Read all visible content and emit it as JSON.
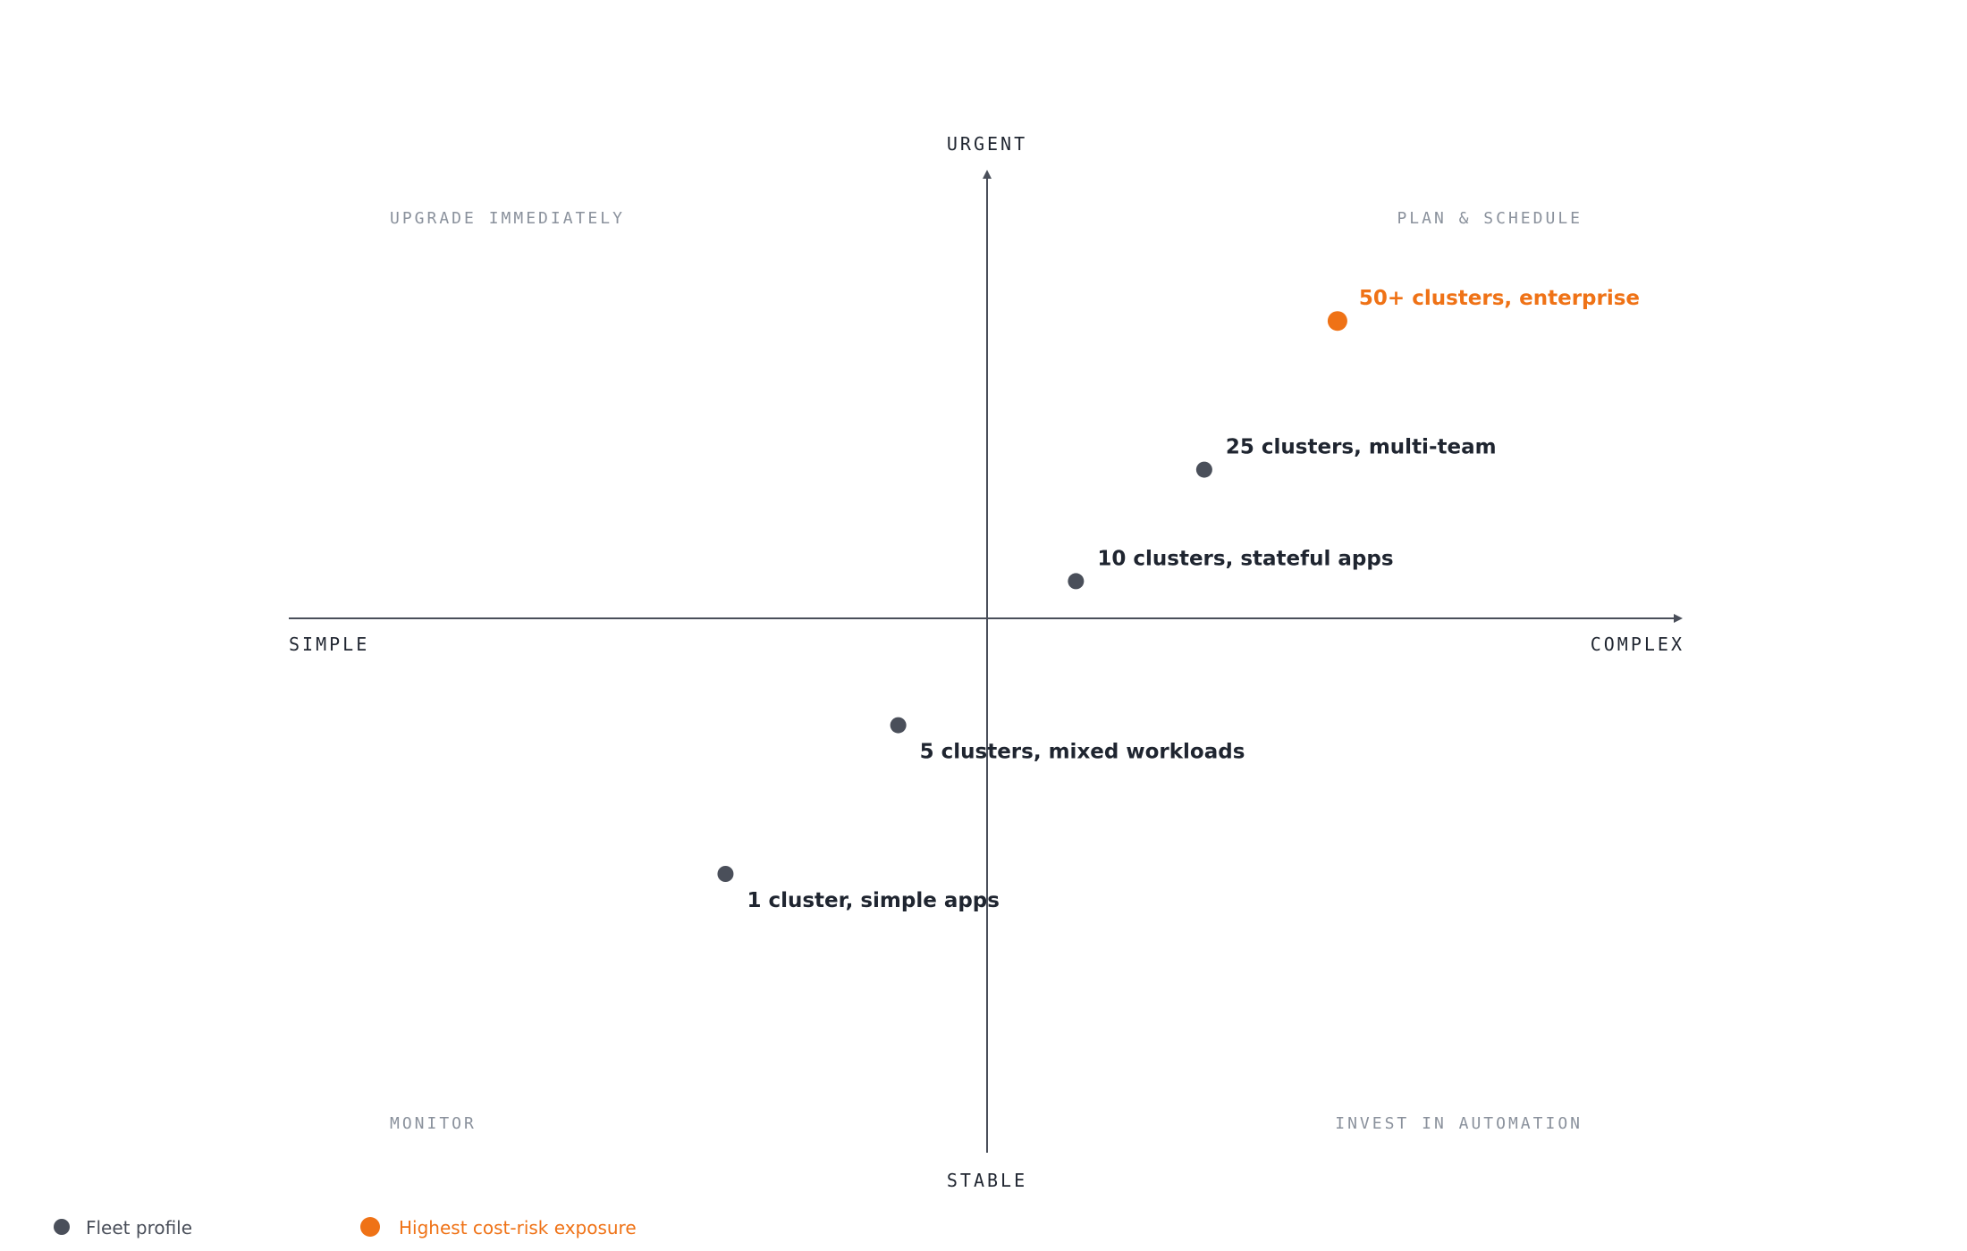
{
  "colors": {
    "axis": "#4a4f5a",
    "point": "#4a4f5a",
    "point_label": "#1f2530",
    "highlight": "#ef7216",
    "quadrant_label": "#8a919c",
    "legend_text": "#4a4f5a"
  },
  "chart_data": {
    "type": "scatter",
    "title": "",
    "axes": {
      "x": {
        "negative_label": "SIMPLE",
        "positive_label": "COMPLEX",
        "range": [
          -1,
          1
        ]
      },
      "y": {
        "negative_label": "STABLE",
        "positive_label": "URGENT",
        "range": [
          -1,
          1
        ]
      }
    },
    "grid": false,
    "quadrants": {
      "top_left": "UPGRADE IMMEDIATELY",
      "top_right": "PLAN & SCHEDULE",
      "bottom_left": "MONITOR",
      "bottom_right": "INVEST IN AUTOMATION"
    },
    "series": [
      {
        "name": "Fleet profile",
        "highlight": false,
        "points": [
          {
            "label": "1 cluster, simple apps",
            "x": -0.53,
            "y": -0.55
          },
          {
            "label": "5 clusters, mixed workloads",
            "x": -0.18,
            "y": -0.23
          },
          {
            "label": "10 clusters, stateful apps",
            "x": 0.18,
            "y": 0.08
          },
          {
            "label": "25 clusters, multi-team",
            "x": 0.44,
            "y": 0.32
          }
        ]
      },
      {
        "name": "Highest cost-risk exposure",
        "highlight": true,
        "points": [
          {
            "label": "50+ clusters, enterprise",
            "x": 0.71,
            "y": 0.64
          }
        ]
      }
    ],
    "legend_position": "bottom-left"
  }
}
